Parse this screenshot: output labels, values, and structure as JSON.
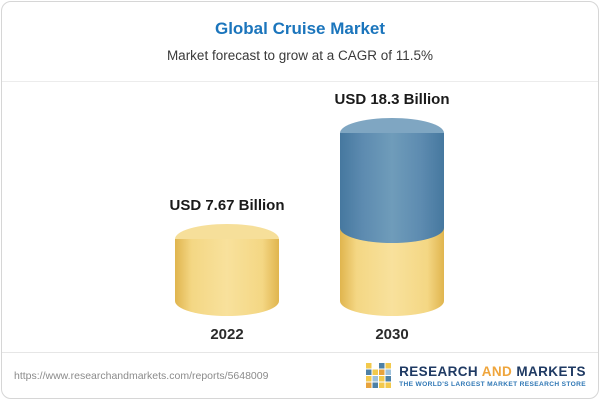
{
  "header": {
    "title": "Global Cruise Market",
    "subtitle": "Market forecast to grow at a CAGR of 11.5%"
  },
  "chart_data": {
    "type": "bar",
    "bar_style": "3d-cylinder",
    "title": "Global Cruise Market",
    "subtitle": "Market forecast to grow at a CAGR of 11.5%",
    "categories": [
      "2022",
      "2030"
    ],
    "values": [
      7.67,
      18.3
    ],
    "unit": "USD Billion",
    "value_labels": [
      "USD 7.67 Billion",
      "USD 18.3 Billion"
    ],
    "cagr": "11.5%",
    "legend": "none",
    "grid": "off",
    "colors": {
      "title_accent": "#1b75bc",
      "bar_2022_body": "#f1cd6c",
      "bar_2022_cap": "#f6df9a",
      "bar_2030_top_segment": "#4d80a6",
      "bar_2030_top_cap": "#7fa6c2",
      "bar_2030_bottom_segment": "#f1cd6c"
    },
    "segment_fractions_2030": [
      0.6,
      0.4
    ]
  },
  "footer": {
    "url": "https://www.researchandmarkets.com/reports/5648009",
    "logo": {
      "word1": "RESEARCH",
      "word2": "AND",
      "word3": "MARKETS",
      "tagline": "THE WORLD'S LARGEST MARKET RESEARCH STORE"
    }
  }
}
